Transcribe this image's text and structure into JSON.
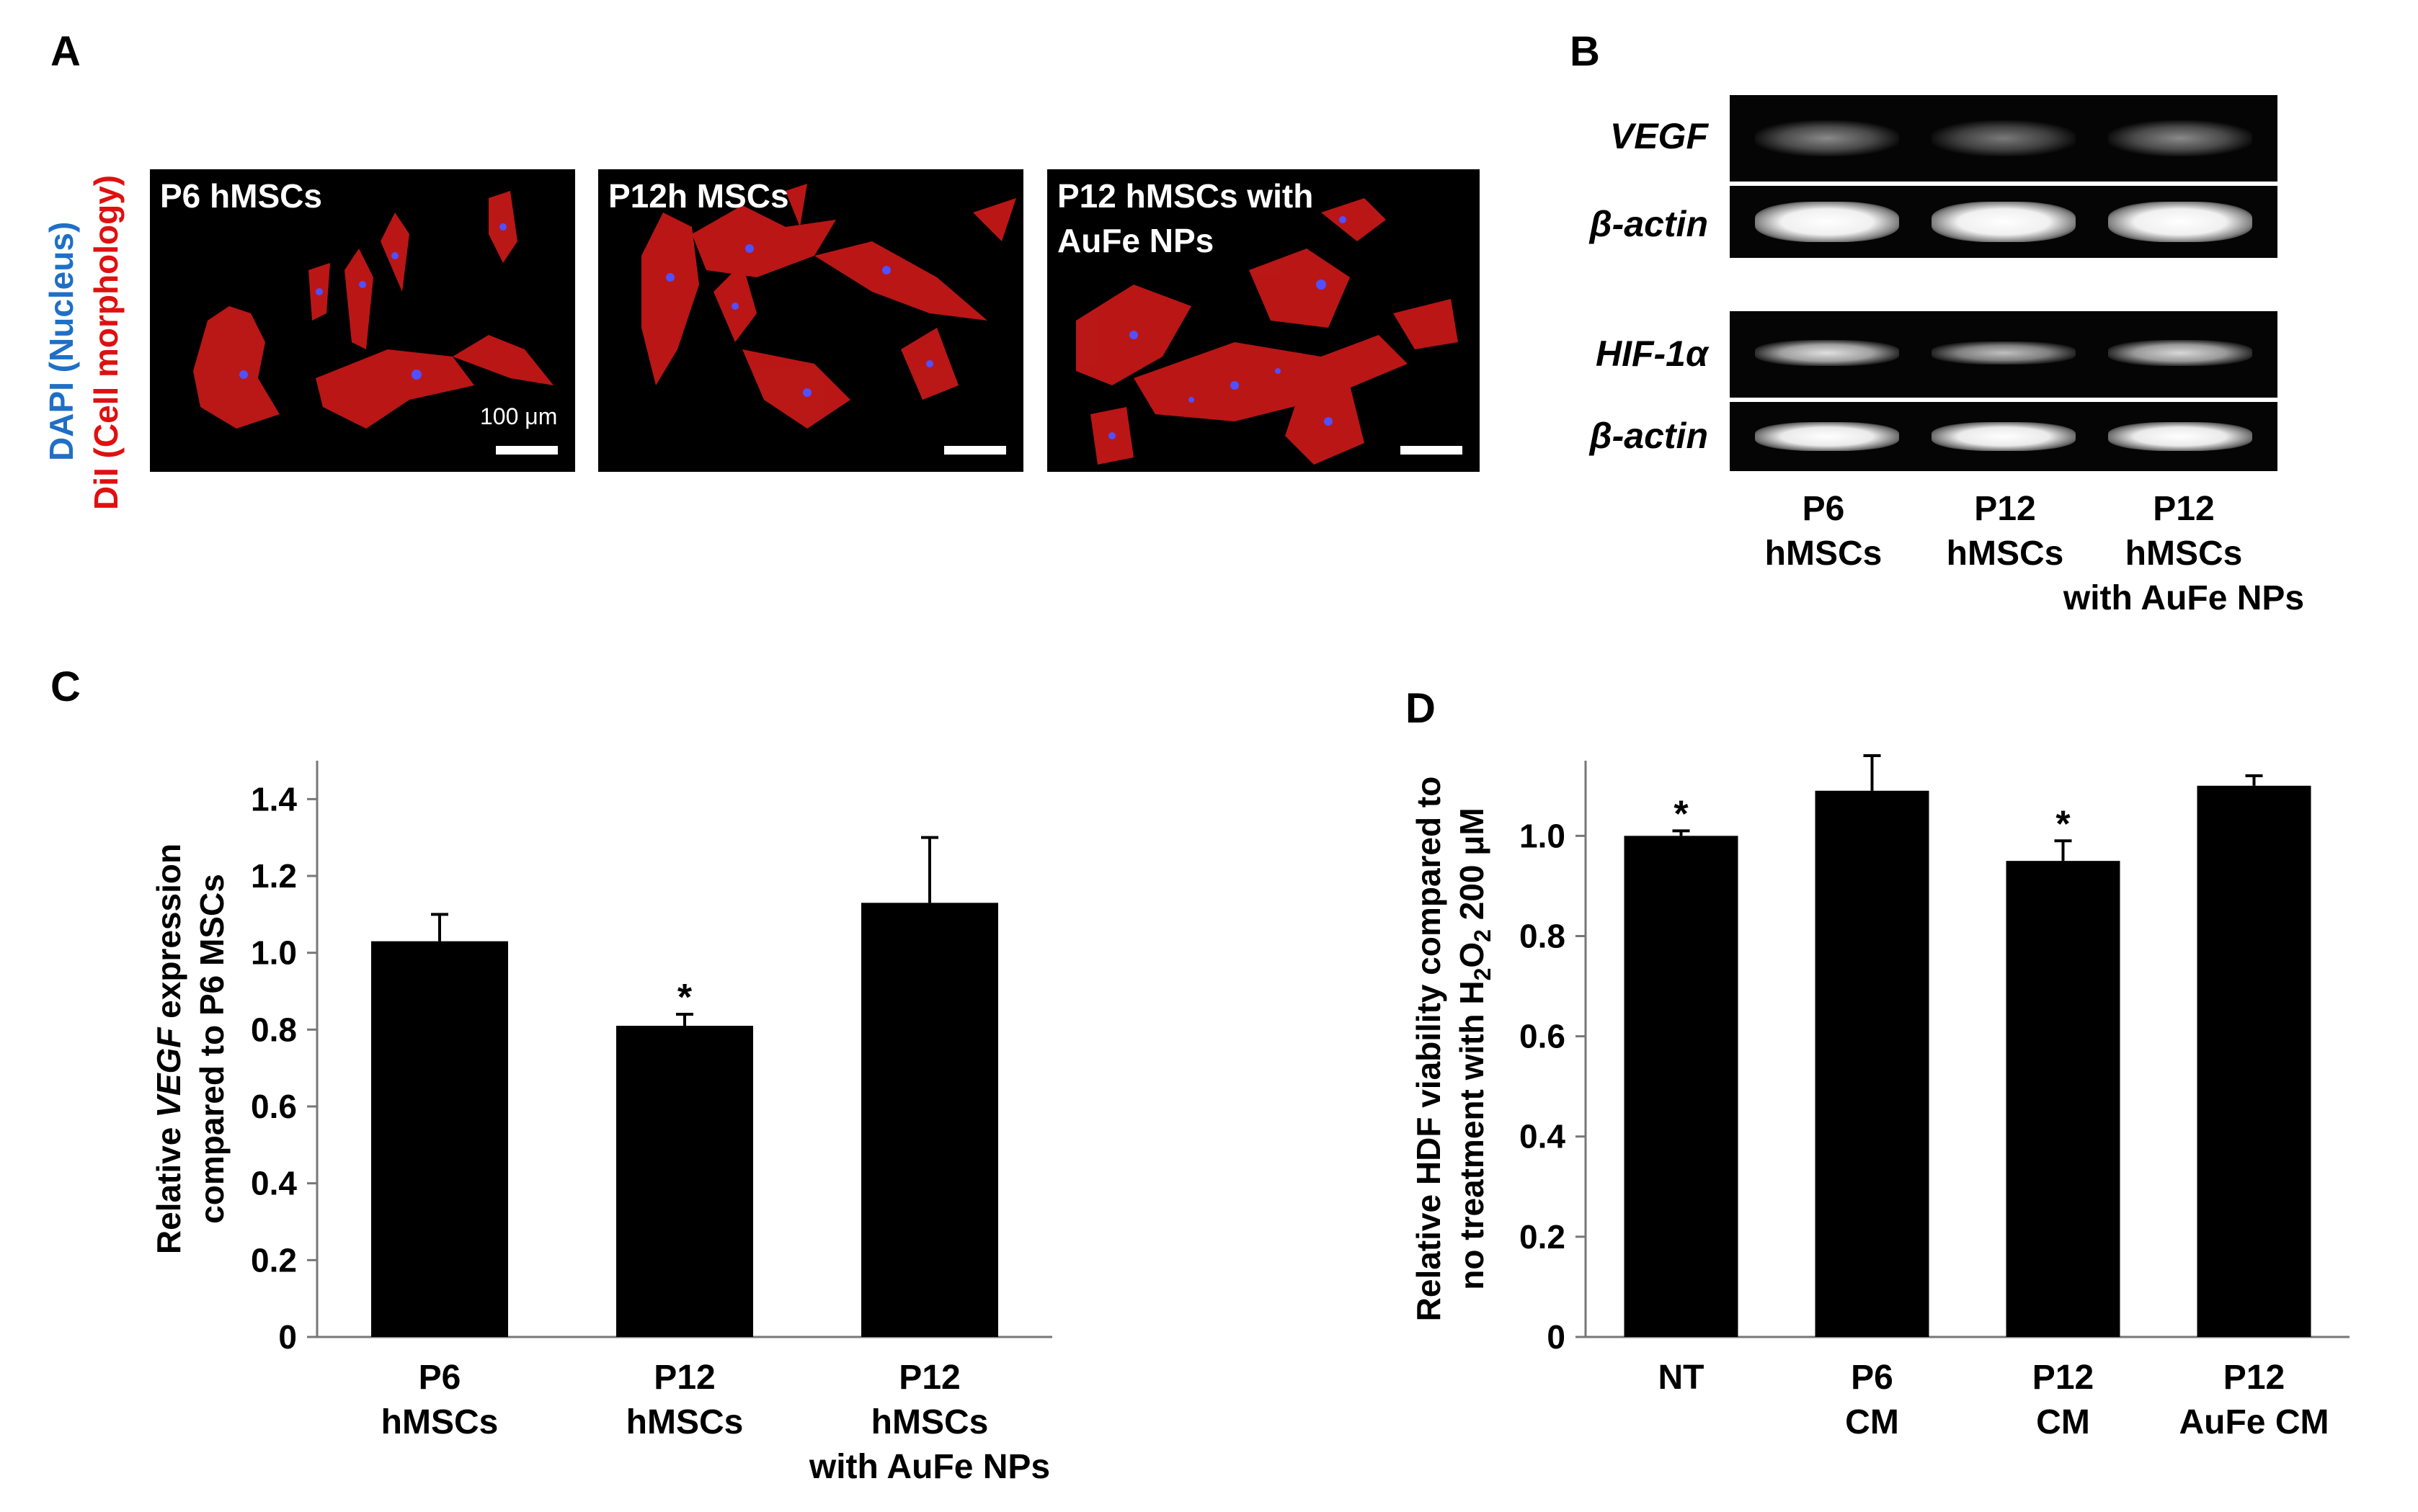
{
  "panels": {
    "a": "A",
    "b": "B",
    "c": "C",
    "d": "D"
  },
  "panel_a": {
    "side_label_blue": "DAPI (Nucleus)",
    "side_label_red": "DiI (Cell morphology)",
    "images": [
      {
        "label": "P6 hMSCs",
        "scale": "100 μm"
      },
      {
        "label": "P12h MSCs"
      },
      {
        "label": "P12 hMSCs with\nAuFe NPs"
      }
    ]
  },
  "panel_b": {
    "rows": [
      {
        "label": "VEGF"
      },
      {
        "label": "β-actin"
      },
      {
        "label": "HIF-1α"
      },
      {
        "label": "β-actin"
      }
    ],
    "lanes": [
      "P6\nhMSCs",
      "P12\nhMSCs",
      "P12\nhMSCs\nwith AuFe NPs"
    ]
  },
  "chart_data": [
    {
      "panel": "C",
      "type": "bar",
      "categories": [
        [
          "P6",
          "hMSCs"
        ],
        [
          "P12",
          "hMSCs"
        ],
        [
          "P12",
          "hMSCs",
          "with AuFe NPs"
        ]
      ],
      "values": [
        1.03,
        0.81,
        1.13
      ],
      "errors": [
        0.07,
        0.03,
        0.17
      ],
      "significance": [
        "",
        "*",
        ""
      ],
      "ylabel_line1": [
        "Relative ",
        "VEGF",
        " expression"
      ],
      "ylabel_line2": "compared to P6 MSCs",
      "ylim": [
        0,
        1.5
      ],
      "yticks": [
        0,
        0.2,
        0.4,
        0.6,
        0.8,
        1.0,
        1.2,
        1.4
      ],
      "ytick_labels": [
        "0",
        "0.2",
        "0.4",
        "0.6",
        "0.8",
        "1.0",
        "1.2",
        "1.4"
      ],
      "bar_color": "#000000"
    },
    {
      "panel": "D",
      "type": "bar",
      "categories": [
        [
          "NT"
        ],
        [
          "P6",
          "CM"
        ],
        [
          "P12",
          "CM"
        ],
        [
          "P12",
          "AuFe CM"
        ]
      ],
      "values": [
        1.0,
        1.09,
        0.95,
        1.1
      ],
      "errors": [
        0.01,
        0.07,
        0.04,
        0.02
      ],
      "significance": [
        "*",
        "",
        "*",
        ""
      ],
      "ylabel_line1": "Relative HDF viability compared to",
      "ylabel_line2": [
        "no treatment with H",
        "2",
        "O",
        "2",
        " 200 μM"
      ],
      "ylim": [
        0,
        1.15
      ],
      "yticks": [
        0,
        0.2,
        0.4,
        0.6,
        0.8,
        1.0
      ],
      "ytick_labels": [
        "0",
        "0.2",
        "0.4",
        "0.6",
        "0.8",
        "1.0"
      ],
      "bar_color": "#000000"
    }
  ]
}
